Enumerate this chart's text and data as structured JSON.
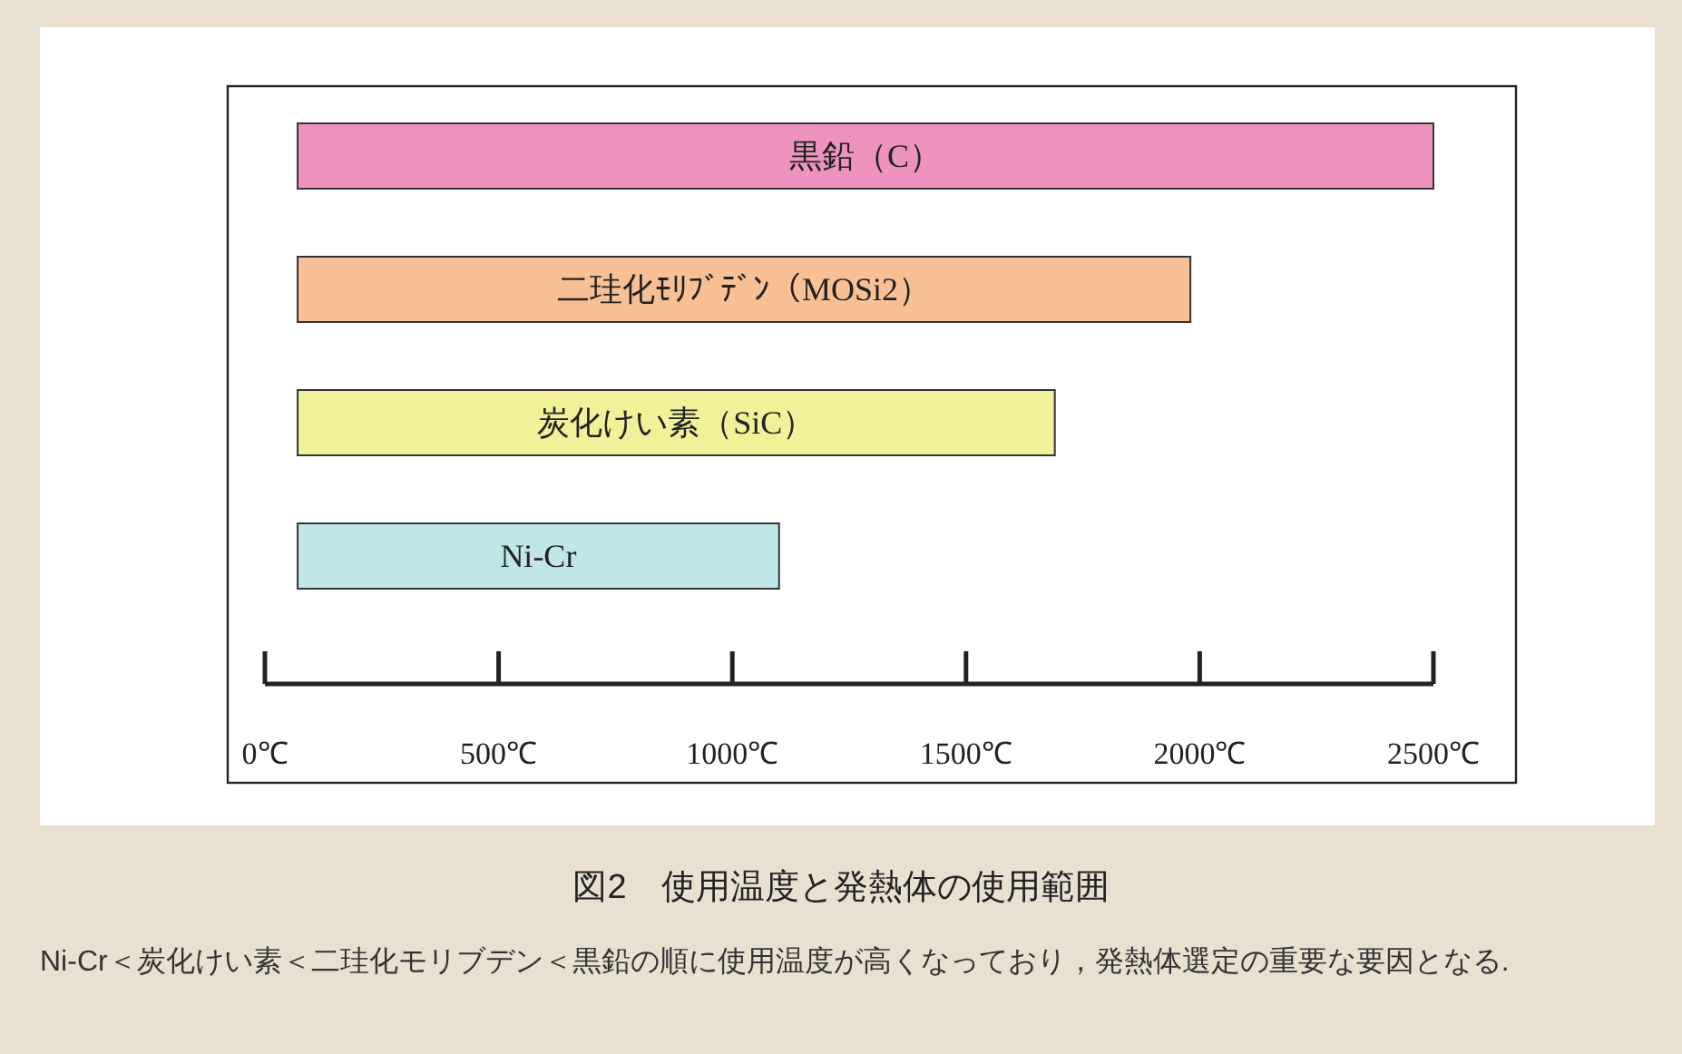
{
  "chart_data": {
    "type": "bar",
    "orientation": "horizontal",
    "title": "図2　使用温度と発熱体の使用範囲",
    "categories": [
      "黒鉛（C）",
      "二珪化ﾓﾘﾌﾞﾃﾞﾝ（MOSi2）",
      "炭化けい素（SiC）",
      "Ni-Cr"
    ],
    "values": [
      2430,
      1910,
      1620,
      1030
    ],
    "base": [
      70,
      70,
      70,
      70
    ],
    "colors": [
      "#ee93c0",
      "#f9c096",
      "#f2f099",
      "#c1e6ea"
    ],
    "xlim": [
      0,
      2500
    ],
    "xticks": [
      {
        "value": 0,
        "label": "0℃"
      },
      {
        "value": 500,
        "label": "500℃"
      },
      {
        "value": 1000,
        "label": "1000℃"
      },
      {
        "value": 1500,
        "label": "1500℃"
      },
      {
        "value": 2000,
        "label": "2000℃"
      },
      {
        "value": 2500,
        "label": "2500℃"
      }
    ],
    "grid": false,
    "annotations": [
      "Ni-Cr＜炭化けい素＜二珪化モリブデン＜黒鉛の順に使用温度が高くなっており，発熱体選定の重要な要因となる."
    ]
  }
}
